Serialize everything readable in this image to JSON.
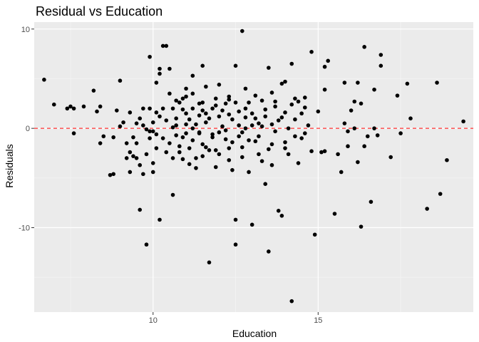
{
  "chart_data": {
    "type": "scatter",
    "title": "Residual vs Education",
    "xlabel": "Education",
    "ylabel": "Residuals",
    "xlim": [
      6.4,
      19.7
    ],
    "ylim": [
      -18.5,
      10.7
    ],
    "x_ticks": [
      10,
      15
    ],
    "x_minor_ticks": [
      7.5,
      12.5,
      17.5
    ],
    "y_ticks": [
      -10,
      0,
      10
    ],
    "y_minor_ticks": [
      -15,
      -5,
      5
    ],
    "reference_line": {
      "y": 0,
      "style": "dashed",
      "color": "#ff3333"
    },
    "grid": true,
    "background": "#ebebeb",
    "point_color": "#000000",
    "points": [
      [
        6.7,
        4.9
      ],
      [
        7.0,
        2.4
      ],
      [
        7.4,
        2.0
      ],
      [
        7.5,
        2.2
      ],
      [
        7.6,
        -0.5
      ],
      [
        7.6,
        2.0
      ],
      [
        7.9,
        2.2
      ],
      [
        8.2,
        3.8
      ],
      [
        8.3,
        1.7
      ],
      [
        8.4,
        2.2
      ],
      [
        8.4,
        -1.5
      ],
      [
        8.5,
        -0.8
      ],
      [
        8.7,
        -4.7
      ],
      [
        8.8,
        -4.6
      ],
      [
        8.8,
        -0.9
      ],
      [
        8.9,
        1.8
      ],
      [
        9.0,
        4.8
      ],
      [
        9.0,
        0.2
      ],
      [
        9.1,
        0.6
      ],
      [
        9.2,
        -1.5
      ],
      [
        9.3,
        1.6
      ],
      [
        9.3,
        -2.4
      ],
      [
        9.3,
        -4.4
      ],
      [
        9.4,
        -2.8
      ],
      [
        9.5,
        -1.5
      ],
      [
        9.5,
        -3.0
      ],
      [
        9.6,
        -3.7
      ],
      [
        9.6,
        -8.2
      ],
      [
        9.7,
        -4.6
      ],
      [
        9.7,
        0.3
      ],
      [
        9.7,
        2.0
      ],
      [
        9.8,
        -11.7
      ],
      [
        9.8,
        -2.6
      ],
      [
        9.8,
        -0.1
      ],
      [
        9.9,
        7.2
      ],
      [
        9.9,
        2.0
      ],
      [
        9.9,
        -1.0
      ],
      [
        10.0,
        -3.5
      ],
      [
        10.0,
        -4.4
      ],
      [
        10.0,
        -0.3
      ],
      [
        10.1,
        4.6
      ],
      [
        10.1,
        1.6
      ],
      [
        10.1,
        -2.0
      ],
      [
        10.2,
        6.0
      ],
      [
        10.2,
        5.5
      ],
      [
        10.2,
        -9.2
      ],
      [
        10.2,
        1.2
      ],
      [
        10.3,
        8.3
      ],
      [
        10.3,
        2.0
      ],
      [
        10.3,
        -1.0
      ],
      [
        10.4,
        8.3
      ],
      [
        10.4,
        -2.4
      ],
      [
        10.5,
        6.0
      ],
      [
        10.5,
        3.5
      ],
      [
        10.5,
        -1.5
      ],
      [
        10.6,
        2.0
      ],
      [
        10.6,
        -6.7
      ],
      [
        10.6,
        -3.0
      ],
      [
        10.7,
        1.0
      ],
      [
        10.7,
        0.3
      ],
      [
        10.8,
        2.6
      ],
      [
        10.8,
        -1.8
      ],
      [
        10.9,
        3.0
      ],
      [
        10.9,
        -3.1
      ],
      [
        11.0,
        4.0
      ],
      [
        11.0,
        1.5
      ],
      [
        11.0,
        -0.5
      ],
      [
        11.1,
        -2.0
      ],
      [
        11.1,
        0.9
      ],
      [
        11.2,
        5.3
      ],
      [
        11.2,
        3.5
      ],
      [
        11.2,
        2.0
      ],
      [
        11.2,
        -1.2
      ],
      [
        11.3,
        0.4
      ],
      [
        11.3,
        -3.0
      ],
      [
        11.3,
        -4.0
      ],
      [
        11.4,
        2.5
      ],
      [
        11.4,
        -0.4
      ],
      [
        11.5,
        6.3
      ],
      [
        11.5,
        1.8
      ],
      [
        11.5,
        -1.6
      ],
      [
        11.6,
        4.2
      ],
      [
        11.6,
        0.6
      ],
      [
        11.7,
        -13.5
      ],
      [
        11.7,
        -2.2
      ],
      [
        11.7,
        1.0
      ],
      [
        11.8,
        2.0
      ],
      [
        11.8,
        -0.6
      ],
      [
        11.9,
        3.0
      ],
      [
        11.9,
        -3.9
      ],
      [
        12.0,
        4.4
      ],
      [
        12.0,
        1.2
      ],
      [
        12.0,
        -2.6
      ],
      [
        12.1,
        0.2
      ],
      [
        12.2,
        2.5
      ],
      [
        12.2,
        -1.1
      ],
      [
        12.3,
        -2.0
      ],
      [
        12.3,
        3.2
      ],
      [
        12.4,
        0.9
      ],
      [
        12.4,
        -4.2
      ],
      [
        12.5,
        -9.2
      ],
      [
        12.5,
        6.3
      ],
      [
        12.5,
        -11.7
      ],
      [
        12.5,
        2.6
      ],
      [
        12.6,
        -0.8
      ],
      [
        12.6,
        1.7
      ],
      [
        12.7,
        9.8
      ],
      [
        12.7,
        -1.9
      ],
      [
        12.8,
        4.0
      ],
      [
        12.8,
        0.0
      ],
      [
        12.9,
        -4.4
      ],
      [
        12.9,
        2.6
      ],
      [
        13.0,
        1.5
      ],
      [
        13.0,
        -9.7
      ],
      [
        13.1,
        3.3
      ],
      [
        13.1,
        -1.3
      ],
      [
        13.2,
        0.5
      ],
      [
        13.3,
        -3.3
      ],
      [
        13.4,
        -5.6
      ],
      [
        13.4,
        1.9
      ],
      [
        13.5,
        6.1
      ],
      [
        13.5,
        -2.1
      ],
      [
        13.5,
        -12.4
      ],
      [
        13.6,
        3.6
      ],
      [
        13.6,
        -3.7
      ],
      [
        13.7,
        2.7
      ],
      [
        13.8,
        -8.3
      ],
      [
        13.8,
        0.8
      ],
      [
        13.9,
        4.5
      ],
      [
        13.9,
        -8.8
      ],
      [
        14.0,
        4.7
      ],
      [
        14.0,
        1.6
      ],
      [
        14.1,
        -2.6
      ],
      [
        14.2,
        6.5
      ],
      [
        14.2,
        -17.4
      ],
      [
        14.3,
        3.0
      ],
      [
        14.3,
        -0.8
      ],
      [
        14.4,
        -3.5
      ],
      [
        14.4,
        2.7
      ],
      [
        14.5,
        1.5
      ],
      [
        14.6,
        3.1
      ],
      [
        14.6,
        -0.5
      ],
      [
        14.8,
        -2.3
      ],
      [
        14.8,
        7.7
      ],
      [
        14.9,
        -10.7
      ],
      [
        15.0,
        1.7
      ],
      [
        15.1,
        -2.4
      ],
      [
        15.2,
        3.9
      ],
      [
        15.2,
        -2.3
      ],
      [
        15.2,
        6.2
      ],
      [
        15.3,
        6.8
      ],
      [
        15.5,
        -8.6
      ],
      [
        15.6,
        -2.6
      ],
      [
        15.7,
        -4.4
      ],
      [
        15.8,
        0.5
      ],
      [
        15.8,
        4.6
      ],
      [
        15.9,
        -0.3
      ],
      [
        15.9,
        -1.8
      ],
      [
        16.0,
        1.8
      ],
      [
        16.1,
        2.7
      ],
      [
        16.1,
        0.0
      ],
      [
        16.2,
        4.6
      ],
      [
        16.2,
        -3.4
      ],
      [
        16.3,
        -9.9
      ],
      [
        16.3,
        2.5
      ],
      [
        16.4,
        8.2
      ],
      [
        16.4,
        -1.8
      ],
      [
        16.5,
        -0.8
      ],
      [
        16.6,
        -7.4
      ],
      [
        16.7,
        0.0
      ],
      [
        16.7,
        3.9
      ],
      [
        16.8,
        -0.7
      ],
      [
        16.9,
        6.3
      ],
      [
        16.9,
        7.4
      ],
      [
        17.2,
        -2.9
      ],
      [
        17.4,
        3.3
      ],
      [
        17.5,
        -0.5
      ],
      [
        17.7,
        4.5
      ],
      [
        17.8,
        1.0
      ],
      [
        18.3,
        -8.1
      ],
      [
        18.6,
        4.6
      ],
      [
        18.7,
        -6.6
      ],
      [
        18.9,
        -3.2
      ],
      [
        19.4,
        0.7
      ],
      [
        9.5,
        0.5
      ],
      [
        9.9,
        -0.3
      ],
      [
        10.0,
        0.6
      ],
      [
        10.1,
        -0.6
      ],
      [
        10.4,
        0.8
      ],
      [
        10.6,
        0.1
      ],
      [
        10.7,
        -0.7
      ],
      [
        10.9,
        1.9
      ],
      [
        10.9,
        -0.9
      ],
      [
        11.0,
        0.4
      ],
      [
        11.2,
        0.0
      ],
      [
        11.4,
        -0.5
      ],
      [
        11.4,
        1.3
      ],
      [
        11.6,
        -1.9
      ],
      [
        11.6,
        1.5
      ],
      [
        11.8,
        -0.9
      ],
      [
        12.0,
        -0.4
      ],
      [
        12.1,
        1.8
      ],
      [
        12.2,
        -0.2
      ],
      [
        12.3,
        1.4
      ],
      [
        12.4,
        -1.4
      ],
      [
        12.6,
        0.3
      ],
      [
        12.7,
        -0.4
      ],
      [
        12.8,
        1.1
      ],
      [
        12.9,
        -1.2
      ],
      [
        13.0,
        0.3
      ],
      [
        13.1,
        1.0
      ],
      [
        13.2,
        -0.8
      ],
      [
        13.3,
        0.2
      ],
      [
        13.4,
        1.2
      ],
      [
        13.6,
        0.4
      ],
      [
        13.7,
        -0.3
      ],
      [
        13.9,
        1.1
      ],
      [
        14.0,
        -1.4
      ],
      [
        14.1,
        0.0
      ],
      [
        14.3,
        0.9
      ],
      [
        14.5,
        -1.0
      ],
      [
        14.7,
        0.3
      ],
      [
        10.8,
        -2.4
      ],
      [
        11.1,
        -3.6
      ],
      [
        11.5,
        -2.8
      ],
      [
        11.9,
        -2.2
      ],
      [
        12.3,
        -3.2
      ],
      [
        12.7,
        -2.9
      ],
      [
        13.2,
        -2.6
      ],
      [
        13.6,
        -1.6
      ],
      [
        14.0,
        -2.0
      ],
      [
        10.7,
        2.8
      ],
      [
        11.0,
        3.2
      ],
      [
        11.5,
        2.6
      ],
      [
        11.9,
        2.3
      ],
      [
        12.3,
        2.9
      ],
      [
        12.8,
        2.0
      ],
      [
        13.3,
        2.8
      ],
      [
        13.7,
        2.2
      ],
      [
        14.2,
        2.4
      ],
      [
        14.6,
        2.1
      ],
      [
        9.6,
        1.0
      ],
      [
        9.2,
        -3.0
      ],
      [
        9.4,
        -0.9
      ]
    ]
  }
}
